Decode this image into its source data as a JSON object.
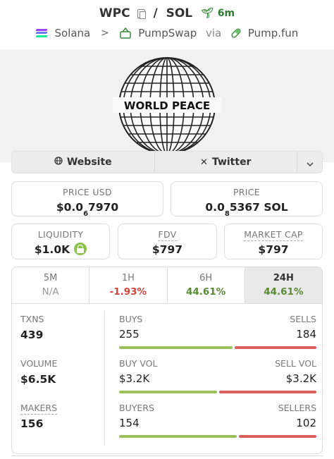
{
  "header": {
    "base": "WPC",
    "sep": "/",
    "quote": "SOL",
    "age": "6m",
    "chain": "Solana",
    "dex": "PumpSwap",
    "via": "via",
    "launchpad": "Pump.fun"
  },
  "banner": {
    "text": "WORLD PEACE"
  },
  "links": {
    "website": "Website",
    "twitter": "Twitter"
  },
  "price_usd": {
    "label": "PRICE USD",
    "prefix": "$0.0",
    "zeros": "6",
    "digits": "7970"
  },
  "price": {
    "label": "PRICE",
    "prefix": "0.0",
    "zeros": "8",
    "digits": "5367 SOL"
  },
  "liquidity": {
    "label": "LIQUIDITY",
    "value": "$1.0K"
  },
  "fdv": {
    "label": "FDV",
    "value": "$797"
  },
  "mcap": {
    "label": "MARKET CAP",
    "value": "$797"
  },
  "tabs": [
    {
      "label": "5M",
      "change": "N/A"
    },
    {
      "label": "1H",
      "change": "-1.93%"
    },
    {
      "label": "6H",
      "change": "44.61%"
    },
    {
      "label": "24H",
      "change": "44.61%"
    }
  ],
  "stats": {
    "txns": {
      "label": "TXNS",
      "value": "439"
    },
    "volume": {
      "label": "VOLUME",
      "value": "$6.5K"
    },
    "makers": {
      "label": "MAKERS",
      "value": "156"
    },
    "buys": {
      "left_label": "BUYS",
      "left_value": "255",
      "right_label": "SELLS",
      "right_value": "184",
      "ratio": 0.58
    },
    "vol": {
      "left_label": "BUY VOL",
      "left_value": "$3.2K",
      "right_label": "SELL VOL",
      "right_value": "$3.2K",
      "ratio": 0.5
    },
    "buyers": {
      "left_label": "BUYERS",
      "left_value": "154",
      "right_label": "SELLERS",
      "right_value": "102",
      "ratio": 0.6
    }
  },
  "colors": {
    "green": "#9bc25a",
    "red": "#d9605a",
    "positive": "#5a8a32",
    "negative": "#d0443c"
  }
}
